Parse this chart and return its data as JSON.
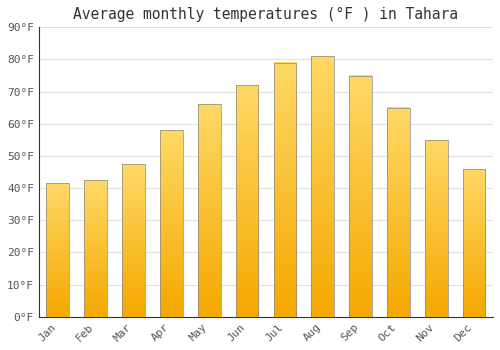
{
  "title": "Average monthly temperatures (°F ) in Tahara",
  "months": [
    "Jan",
    "Feb",
    "Mar",
    "Apr",
    "May",
    "Jun",
    "Jul",
    "Aug",
    "Sep",
    "Oct",
    "Nov",
    "Dec"
  ],
  "values": [
    41.5,
    42.5,
    47.5,
    58,
    66,
    72,
    79,
    81,
    75,
    65,
    55,
    46
  ],
  "bar_color_bottom": "#F5A800",
  "bar_color_top": "#FFD966",
  "bar_edge_color": "#888888",
  "ylim": [
    0,
    90
  ],
  "yticks": [
    0,
    10,
    20,
    30,
    40,
    50,
    60,
    70,
    80,
    90
  ],
  "ytick_labels": [
    "0°F",
    "10°F",
    "20°F",
    "30°F",
    "40°F",
    "50°F",
    "60°F",
    "70°F",
    "80°F",
    "90°F"
  ],
  "bg_color": "#ffffff",
  "grid_color": "#e0e0e0",
  "title_fontsize": 10.5,
  "tick_fontsize": 8,
  "bar_width": 0.6
}
